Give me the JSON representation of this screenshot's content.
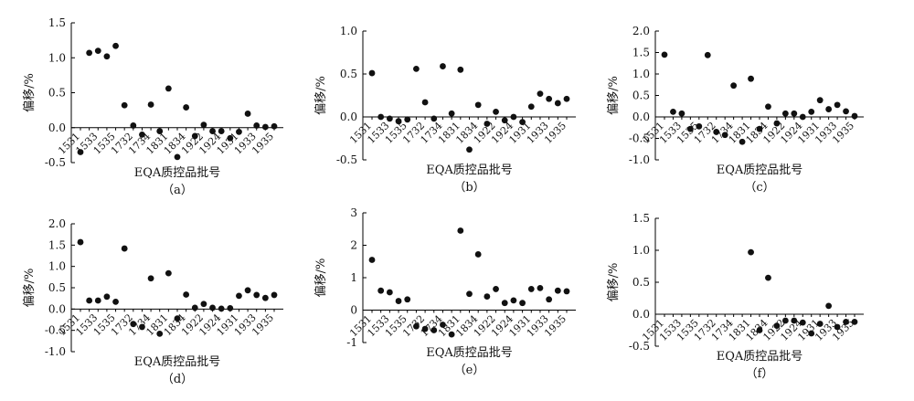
{
  "chart_data": [
    {
      "type": "scatter",
      "caption": "（a）",
      "xlabel": "EQA质控品批号",
      "ylabel": "偏移/%",
      "ylim": [
        -0.5,
        1.5
      ],
      "yticks": [
        "1.5",
        "1.0",
        "0.5",
        "0.0",
        "-0.5"
      ],
      "xtick_labels": [
        "1531",
        "1533",
        "1535",
        "1732",
        "1734",
        "1831",
        "1834",
        "1922",
        "1924",
        "1931",
        "1933",
        "1935"
      ],
      "series": [
        {
          "values": [
            -0.35,
            1.07,
            1.1,
            1.02,
            1.17,
            0.32,
            0.03,
            -0.1,
            0.33,
            -0.05,
            0.56,
            -0.42,
            0.29,
            -0.12,
            0.04,
            -0.05,
            -0.05,
            -0.15,
            -0.06,
            0.2,
            0.03,
            0.01,
            0.02
          ]
        }
      ]
    },
    {
      "type": "scatter",
      "caption": "（b）",
      "xlabel": "EQA质控品批号",
      "ylabel": "偏移/%",
      "ylim": [
        -0.5,
        1.0
      ],
      "yticks": [
        "1.0",
        "0.5",
        "0.0",
        "-0.5"
      ],
      "xtick_labels": [
        "1531",
        "1533",
        "1535",
        "1732",
        "1734",
        "1831",
        "1834",
        "1922",
        "1924",
        "1931",
        "1933",
        "1935"
      ],
      "series": [
        {
          "values": [
            0.51,
            0.0,
            -0.02,
            -0.05,
            -0.03,
            0.56,
            0.17,
            -0.02,
            0.59,
            0.04,
            0.55,
            -0.38,
            0.14,
            -0.08,
            0.06,
            -0.04,
            0.0,
            -0.06,
            0.12,
            0.27,
            0.21,
            0.16,
            0.21
          ]
        }
      ]
    },
    {
      "type": "scatter",
      "caption": "（c）",
      "xlabel": "EQA质控品批号",
      "ylabel": "偏移/%",
      "ylim": [
        -1.0,
        2.0
      ],
      "yticks": [
        "2.0",
        "1.5",
        "1.0",
        "0.5",
        "0.0",
        "-0.5",
        "-1.0"
      ],
      "xtick_labels": [
        "1531",
        "1533",
        "1535",
        "1732",
        "1734",
        "1831",
        "1834",
        "1922",
        "1924",
        "1931",
        "1933",
        "1935"
      ],
      "series": [
        {
          "values": [
            1.45,
            0.12,
            0.08,
            -0.28,
            -0.22,
            1.44,
            -0.35,
            -0.42,
            0.73,
            -0.58,
            0.89,
            -0.28,
            0.24,
            -0.15,
            0.08,
            0.08,
            0.0,
            0.12,
            0.39,
            0.18,
            0.28,
            0.13,
            0.02
          ]
        }
      ]
    },
    {
      "type": "scatter",
      "caption": "（d）",
      "xlabel": "EQA质控品批号",
      "ylabel": "偏移/%",
      "ylim": [
        -1.0,
        2.0
      ],
      "yticks": [
        "2.0",
        "1.5",
        "1.0",
        "0.5",
        "0.0",
        "-0.5",
        "-1.0"
      ],
      "xtick_labels": [
        "1531",
        "1533",
        "1535",
        "1732",
        "1734",
        "1831",
        "1834",
        "1922",
        "1924",
        "1931",
        "1933",
        "1935"
      ],
      "series": [
        {
          "values": [
            1.57,
            0.2,
            0.2,
            0.29,
            0.17,
            1.42,
            -0.35,
            -0.42,
            0.72,
            -0.58,
            0.84,
            -0.22,
            0.34,
            0.03,
            0.12,
            0.03,
            0.01,
            0.02,
            0.31,
            0.44,
            0.33,
            0.26,
            0.33
          ]
        }
      ]
    },
    {
      "type": "scatter",
      "caption": "（e）",
      "xlabel": "EQA质控品批号",
      "ylabel": "偏移/%",
      "ylim": [
        -1,
        3
      ],
      "yticks": [
        "3",
        "2",
        "1",
        "0",
        "-1"
      ],
      "xtick_labels": [
        "1531",
        "1533",
        "1535",
        "1732",
        "1734",
        "1831",
        "1834",
        "1922",
        "1924",
        "1931",
        "1933",
        "1935"
      ],
      "series": [
        {
          "values": [
            1.55,
            0.6,
            0.55,
            0.28,
            0.33,
            -0.5,
            -0.58,
            -0.62,
            -0.45,
            -0.75,
            2.45,
            0.5,
            1.72,
            0.42,
            0.65,
            0.22,
            0.3,
            0.22,
            0.65,
            0.68,
            0.33,
            0.6,
            0.58
          ]
        }
      ]
    },
    {
      "type": "scatter",
      "caption": "（f）",
      "xlabel": "EQA质控品批号",
      "ylabel": "偏移/%",
      "ylim": [
        -0.5,
        1.5
      ],
      "yticks": [
        "1.5",
        "1.0",
        "0.5",
        "0.0",
        "-0.5"
      ],
      "xtick_labels": [
        "1531",
        "1533",
        "1535",
        "1732",
        "1734",
        "1831",
        "1834",
        "1922",
        "1924",
        "1931",
        "1933",
        "1935"
      ],
      "series": [
        {
          "values": [
            null,
            null,
            null,
            null,
            null,
            null,
            null,
            null,
            null,
            null,
            0.97,
            -0.25,
            0.57,
            -0.18,
            -0.1,
            -0.1,
            -0.13,
            -0.3,
            -0.15,
            0.13,
            -0.2,
            -0.12,
            -0.12
          ]
        }
      ]
    }
  ]
}
